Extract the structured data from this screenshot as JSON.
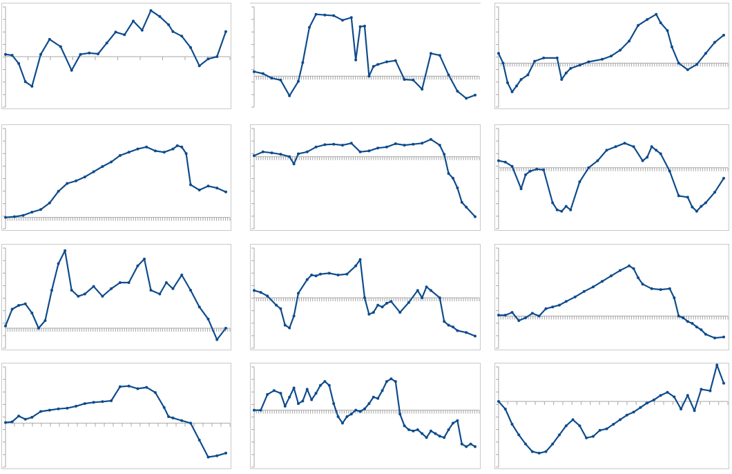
{
  "colors": {
    "series": "#0d4b8c",
    "axis": "#a6a6a6",
    "frame": "#c8c8c8",
    "background": "#ffffff"
  },
  "chart_data": [
    {
      "type": "line",
      "grid": false,
      "xlim": [
        0,
        100
      ],
      "ylim": [
        -10,
        10
      ],
      "x_ticks": 10,
      "series": [
        {
          "x": [
            0,
            3,
            6,
            9,
            12,
            16,
            20,
            25,
            30,
            34,
            38,
            42,
            46,
            50,
            54,
            58,
            62,
            66,
            70,
            74,
            76,
            80,
            84,
            88,
            92,
            96,
            100
          ],
          "values": [
            0.5,
            0.3,
            -1.5,
            -5.5,
            -6.5,
            0.5,
            3.8,
            2.2,
            -3,
            0.5,
            0.8,
            0.6,
            3,
            5.4,
            4.8,
            7.8,
            5.8,
            10.1,
            8.8,
            7,
            5.5,
            4.5,
            2,
            -2,
            -0.5,
            0,
            5.5
          ]
        }
      ]
    },
    {
      "type": "line",
      "grid": false,
      "xlim": [
        0,
        100
      ],
      "ylim": [
        -4,
        10
      ],
      "x_ticks": 100,
      "top_rule": true,
      "series": [
        {
          "x": [
            0,
            4,
            8,
            12,
            16,
            20,
            22,
            25,
            28,
            32,
            36,
            40,
            44,
            46,
            48,
            50,
            52,
            54,
            56,
            60,
            64,
            68,
            72,
            76,
            80,
            84,
            88,
            92,
            96,
            100
          ],
          "values": [
            0.7,
            0.4,
            -0.3,
            -0.6,
            -3,
            -0.8,
            2.1,
            7.5,
            9.5,
            9.4,
            9.3,
            8.6,
            9,
            2.5,
            7.6,
            7.7,
            0,
            1.5,
            1.8,
            2.2,
            2.4,
            -0.5,
            -0.6,
            -2,
            3.5,
            3.2,
            0.2,
            -2.3,
            -3.4,
            -2.9
          ]
        }
      ]
    },
    {
      "type": "line",
      "grid": false,
      "xlim": [
        0,
        100
      ],
      "ylim": [
        -6,
        8
      ],
      "x_ticks": 100,
      "series": [
        {
          "x": [
            0,
            2,
            4,
            6,
            8,
            10,
            13,
            16,
            20,
            26,
            28,
            30,
            32,
            36,
            40,
            46,
            50,
            54,
            58,
            62,
            66,
            70,
            72,
            75,
            77,
            80,
            84,
            88,
            92,
            96,
            100
          ],
          "values": [
            1.5,
            0,
            -3,
            -4.4,
            -3.5,
            -2.5,
            -1.8,
            0.3,
            0.8,
            0.8,
            -2.5,
            -1.5,
            -0.8,
            -0.3,
            0.2,
            0.6,
            1.1,
            2,
            3.4,
            5.8,
            6.7,
            7.5,
            6.2,
            5,
            2.5,
            0,
            -1,
            -0.2,
            1.5,
            3.2,
            4.3
          ]
        }
      ]
    },
    {
      "type": "line",
      "grid": false,
      "xlim": [
        0,
        100
      ],
      "ylim": [
        -1,
        13
      ],
      "x_ticks": 100,
      "series": [
        {
          "x": [
            0,
            4,
            8,
            12,
            16,
            20,
            24,
            28,
            32,
            36,
            40,
            44,
            48,
            52,
            56,
            60,
            64,
            68,
            72,
            76,
            78,
            80,
            82,
            84,
            88,
            92,
            96,
            100
          ],
          "values": [
            0,
            0.1,
            0.3,
            0.8,
            1.2,
            2.2,
            4,
            5.2,
            5.6,
            6.2,
            7,
            7.8,
            8.5,
            9.5,
            10,
            10.5,
            10.8,
            10.2,
            10,
            10.5,
            11,
            10.8,
            9.8,
            5,
            4.2,
            4.8,
            4.5,
            3.9
          ]
        }
      ]
    },
    {
      "type": "line",
      "grid": false,
      "xlim": [
        0,
        100
      ],
      "ylim": [
        -14,
        5
      ],
      "x_ticks": 100,
      "series": [
        {
          "x": [
            0,
            4,
            8,
            12,
            16,
            18,
            20,
            24,
            28,
            32,
            36,
            40,
            44,
            48,
            52,
            56,
            60,
            64,
            68,
            72,
            76,
            80,
            84,
            86,
            88,
            90,
            92,
            94,
            96,
            100
          ],
          "values": [
            0.2,
            1,
            0.8,
            0.5,
            0,
            -1.5,
            0.6,
            1,
            2,
            2.5,
            2.6,
            2.4,
            2.8,
            1,
            1.2,
            1.8,
            2,
            2.7,
            2.4,
            2.6,
            2.8,
            3.6,
            2.4,
            0.5,
            -3.5,
            -4.5,
            -6.5,
            -9.5,
            -10.5,
            -12.5
          ]
        }
      ]
    },
    {
      "type": "line",
      "grid": false,
      "xlim": [
        0,
        100
      ],
      "ylim": [
        -8,
        5
      ],
      "x_ticks": 100,
      "series": [
        {
          "x": [
            0,
            3,
            6,
            10,
            12,
            14,
            17,
            20,
            24,
            26,
            28,
            30,
            32,
            36,
            40,
            44,
            48,
            52,
            56,
            60,
            64,
            66,
            68,
            70,
            72,
            76,
            80,
            84,
            86,
            88,
            90,
            92,
            96,
            100
          ],
          "values": [
            1,
            0.8,
            0.2,
            -3,
            -1,
            -0.5,
            -0.2,
            -0.3,
            -5,
            -6,
            -6.2,
            -5.5,
            -6,
            -2,
            0,
            1,
            2.5,
            3,
            3.5,
            3,
            1,
            1.5,
            3,
            2.5,
            2,
            -0.5,
            -4,
            -4.2,
            -5.6,
            -6.2,
            -5.5,
            -5,
            -3.5,
            -1.5
          ]
        }
      ]
    },
    {
      "type": "line",
      "grid": false,
      "xlim": [
        0,
        100
      ],
      "ylim": [
        -2,
        10
      ],
      "x_ticks": 100,
      "series": [
        {
          "x": [
            0,
            3,
            6,
            9,
            12,
            15,
            18,
            21,
            24,
            27,
            30,
            33,
            36,
            40,
            44,
            48,
            52,
            56,
            60,
            63,
            66,
            70,
            73,
            76,
            80,
            84,
            88,
            92,
            96,
            100
          ],
          "values": [
            0.3,
            2.5,
            3,
            3.2,
            2,
            0,
            1,
            5,
            8.5,
            10.2,
            5,
            4.2,
            4.5,
            5.5,
            4.2,
            5.2,
            6,
            6,
            8.2,
            9.1,
            5,
            4.5,
            6,
            5.2,
            7,
            5,
            2.8,
            1.2,
            -1.5,
            0
          ]
        }
      ]
    },
    {
      "type": "line",
      "grid": false,
      "xlim": [
        0,
        100
      ],
      "ylim": [
        -5,
        5
      ],
      "x_ticks": 100,
      "series": [
        {
          "x": [
            0,
            3,
            6,
            10,
            12,
            14,
            16,
            18,
            20,
            24,
            26,
            28,
            30,
            34,
            38,
            42,
            46,
            48,
            50,
            52,
            54,
            56,
            58,
            60,
            62,
            66,
            70,
            74,
            76,
            78,
            80,
            84,
            86,
            88,
            90,
            92,
            96,
            100
          ],
          "values": [
            0.8,
            0.6,
            0.2,
            -0.8,
            -1.2,
            -3,
            -3.3,
            -2,
            0.5,
            2,
            2.5,
            2.4,
            2.6,
            2.7,
            2.5,
            2.6,
            3.5,
            4.2,
            0,
            -1.8,
            -1.6,
            -0.8,
            -1,
            -0.6,
            -0.4,
            -1.6,
            -0.5,
            0.8,
            0,
            1.2,
            0.8,
            0,
            -2.6,
            -3,
            -3.2,
            -3.6,
            -3.8,
            -4.2
          ]
        }
      ]
    },
    {
      "type": "line",
      "grid": false,
      "xlim": [
        0,
        100
      ],
      "ylim": [
        -3,
        7
      ],
      "x_ticks": 100,
      "series": [
        {
          "x": [
            0,
            3,
            6,
            9,
            12,
            15,
            18,
            21,
            24,
            27,
            30,
            34,
            38,
            42,
            46,
            50,
            54,
            58,
            60,
            62,
            64,
            68,
            72,
            76,
            78,
            80,
            82,
            84,
            86,
            88,
            90,
            92,
            96,
            100
          ],
          "values": [
            0.1,
            0.1,
            0.4,
            -0.5,
            -0.2,
            0.3,
            0,
            0.8,
            1,
            1.2,
            1.6,
            2.1,
            2.7,
            3.2,
            3.8,
            4.4,
            5,
            5.5,
            5.2,
            4.2,
            3.5,
            3,
            2.9,
            3,
            2,
            0,
            -0.2,
            -0.6,
            -0.8,
            -1.2,
            -1.5,
            -2,
            -2.4,
            -2.3
          ]
        }
      ]
    },
    {
      "type": "line",
      "grid": false,
      "xlim": [
        0,
        100
      ],
      "ylim": [
        -3,
        4
      ],
      "x_ticks": 25,
      "series": [
        {
          "x": [
            0,
            3,
            6,
            9,
            12,
            16,
            20,
            24,
            28,
            32,
            36,
            40,
            44,
            48,
            52,
            56,
            60,
            64,
            68,
            72,
            74,
            76,
            80,
            84,
            88,
            92,
            96,
            100
          ],
          "values": [
            0.05,
            0.1,
            0.55,
            0.3,
            0.45,
            0.9,
            1,
            1.1,
            1.15,
            1.3,
            1.5,
            1.6,
            1.65,
            1.72,
            2.8,
            2.85,
            2.65,
            2.75,
            2.35,
            1.2,
            0.5,
            0.4,
            0.2,
            0,
            -1.3,
            -2.6,
            -2.5,
            -2.3
          ]
        }
      ]
    },
    {
      "type": "line",
      "grid": false,
      "xlim": [
        0,
        100
      ],
      "ylim": [
        -4,
        3
      ],
      "x_ticks": 100,
      "series": [
        {
          "x": [
            0,
            3,
            6,
            9,
            12,
            14,
            16,
            18,
            20,
            22,
            24,
            26,
            28,
            30,
            32,
            34,
            36,
            38,
            40,
            42,
            44,
            46,
            48,
            50,
            52,
            54,
            56,
            58,
            60,
            62,
            64,
            66,
            68,
            70,
            72,
            74,
            76,
            78,
            80,
            82,
            84,
            86,
            88,
            90,
            92,
            94,
            96,
            98,
            100
          ],
          "values": [
            0,
            0,
            1.2,
            1.5,
            1.3,
            0.3,
            1,
            1.7,
            0.5,
            0.7,
            1.6,
            0.8,
            1.3,
            1.9,
            2.2,
            1.9,
            0.5,
            -0.5,
            -1,
            -0.5,
            -0.3,
            0,
            -0.1,
            0.1,
            0.5,
            1,
            0.9,
            1.5,
            2.2,
            2.4,
            2.2,
            -0.3,
            -1.2,
            -1.5,
            -1.6,
            -1.5,
            -1.8,
            -2.1,
            -1.6,
            -1.8,
            -2,
            -2.1,
            -1.5,
            -1,
            -0.8,
            -2.6,
            -2.8,
            -2.6,
            -2.8
          ]
        }
      ]
    },
    {
      "type": "line",
      "grid": false,
      "xlim": [
        0,
        100
      ],
      "ylim": [
        -4,
        2
      ],
      "x_ticks": 25,
      "series": [
        {
          "x": [
            0,
            3,
            6,
            9,
            12,
            15,
            18,
            21,
            24,
            27,
            30,
            33,
            36,
            39,
            42,
            45,
            48,
            51,
            54,
            57,
            60,
            63,
            66,
            69,
            72,
            75,
            78,
            81,
            84,
            87,
            90,
            94,
            97,
            100
          ],
          "values": [
            0,
            -0.5,
            -1.5,
            -2.2,
            -2.8,
            -3.3,
            -3.4,
            -3.3,
            -2.8,
            -2.2,
            -1.6,
            -1.2,
            -1.6,
            -2.4,
            -2.3,
            -1.9,
            -1.8,
            -1.5,
            -1.2,
            -0.9,
            -0.7,
            -0.4,
            -0.1,
            0.1,
            0.4,
            0.6,
            0.3,
            -0.5,
            0.4,
            -0.6,
            0.8,
            0.7,
            2.4,
            1.2
          ]
        }
      ]
    }
  ]
}
